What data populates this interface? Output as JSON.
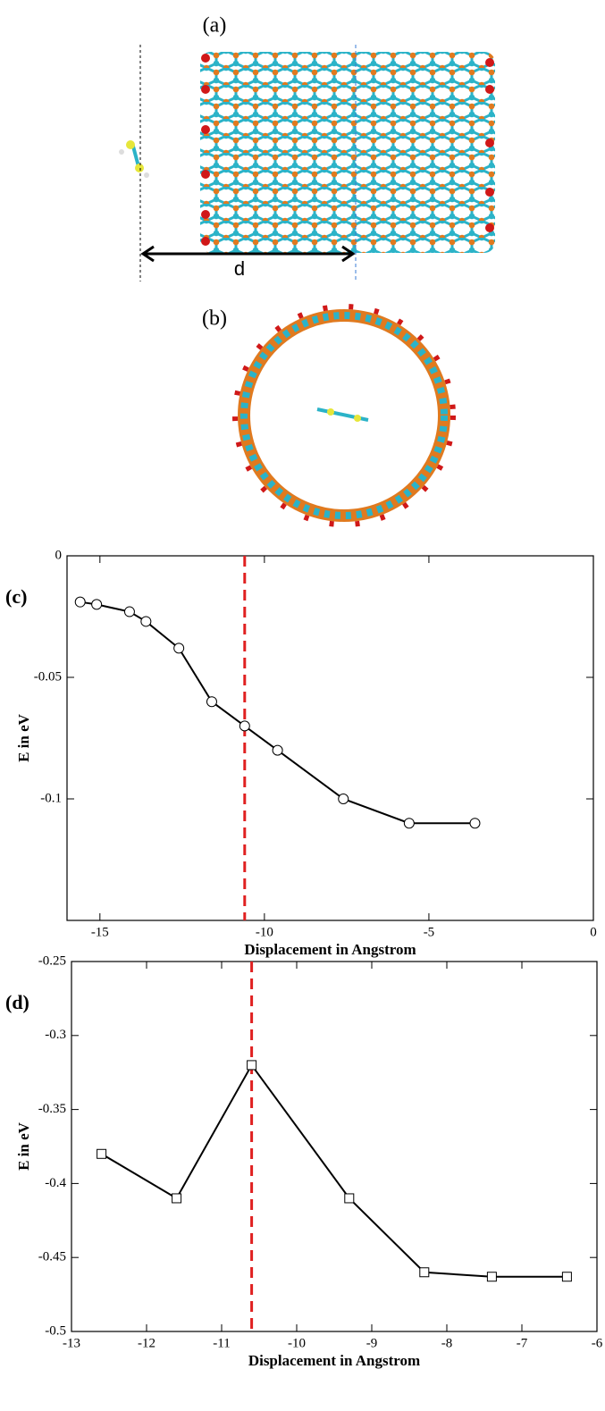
{
  "figure": {
    "label_a": "(a)",
    "distance": "d",
    "label_b": "(b)"
  },
  "chart_data": [
    {
      "type": "line",
      "panel_label": "(c)",
      "x_label": "Displacement in Angstrom",
      "y_label": "E in eV",
      "x": [
        -15.6,
        -15.1,
        -14.1,
        -13.6,
        -12.6,
        -11.6,
        -10.6,
        -9.6,
        -7.6,
        -5.6,
        -3.6
      ],
      "series": [
        {
          "color": "#000000",
          "marker": "circle",
          "values": [
            -0.019,
            -0.02,
            -0.023,
            -0.027,
            -0.038,
            -0.06,
            -0.07,
            -0.08,
            -0.1,
            -0.11,
            -0.11
          ]
        }
      ],
      "xlim": [
        -16,
        0
      ],
      "xticks": [
        -15,
        -10,
        -5,
        0
      ],
      "ylim": [
        -0.15,
        0
      ],
      "yticks": [
        0,
        -0.05,
        -0.1
      ],
      "vline": {
        "x": -10.6,
        "color": "#e02020"
      }
    },
    {
      "type": "line",
      "panel_label": "(d)",
      "x_label": "Displacement in Angstrom",
      "y_label": "E in eV",
      "x": [
        -12.6,
        -11.6,
        -10.6,
        -9.3,
        -8.3,
        -7.4,
        -6.4
      ],
      "series": [
        {
          "color": "#000000",
          "marker": "square",
          "values": [
            -0.38,
            -0.41,
            -0.32,
            -0.41,
            -0.46,
            -0.463,
            -0.463
          ]
        }
      ],
      "xlim": [
        -13,
        -6
      ],
      "xticks": [
        -13,
        -12,
        -11,
        -10,
        -9,
        -8,
        -7,
        -6
      ],
      "ylim": [
        -0.5,
        -0.25
      ],
      "yticks": [
        -0.25,
        -0.3,
        -0.35,
        -0.4,
        -0.45,
        -0.5
      ],
      "vline": {
        "x": -10.6,
        "color": "#e02020"
      }
    }
  ]
}
